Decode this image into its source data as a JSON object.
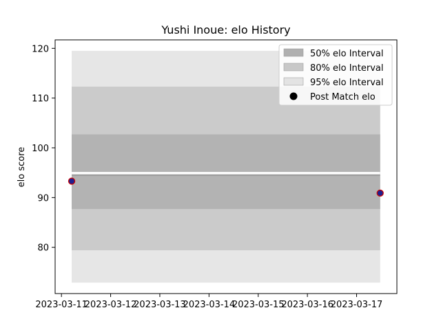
{
  "chart_data": {
    "type": "line",
    "title": "Yushi Inoue: elo History",
    "xlabel": "",
    "ylabel": "elo score",
    "x_ticks": [
      "2023-03-11",
      "2023-03-12",
      "2023-03-13",
      "2023-03-14",
      "2023-03-15",
      "2023-03-16",
      "2023-03-17"
    ],
    "y_ticks": [
      80,
      90,
      100,
      110,
      120
    ],
    "xlim": [
      "2023-03-10T20:55",
      "2023-03-17T19:40"
    ],
    "ylim": [
      70.7,
      121.7
    ],
    "grid": false,
    "legend_position": "top-right",
    "bands": [
      {
        "name": "50% elo Interval",
        "color": "#b0b0b0",
        "x": [
          "2023-03-11T05:00",
          "2023-03-17T11:30"
        ],
        "low": 87.7,
        "high": 102.7
      },
      {
        "name": "80% elo Interval",
        "color": "#c8c8c8",
        "x": [
          "2023-03-11T05:00",
          "2023-03-17T11:30"
        ],
        "low": 79.4,
        "high": 112.3
      },
      {
        "name": "95% elo Interval",
        "color": "#e3e3e3",
        "x": [
          "2023-03-11T05:00",
          "2023-03-17T11:30"
        ],
        "low": 72.9,
        "high": 119.5
      }
    ],
    "mean_line": {
      "color": "#999999",
      "x": [
        "2023-03-11T05:00",
        "2023-03-17T11:30"
      ],
      "values": [
        94.8,
        94.8
      ]
    },
    "series": [
      {
        "name": "Post Match elo",
        "marker_fill": "#1f1f8f",
        "marker_edge": "#cc0000",
        "x": [
          "2023-03-11T05:00",
          "2023-03-17T11:30"
        ],
        "values": [
          93.3,
          90.9
        ]
      }
    ]
  }
}
